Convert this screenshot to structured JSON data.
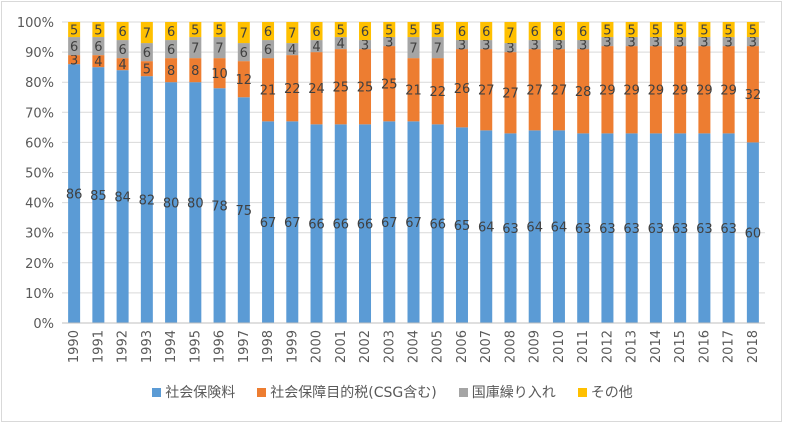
{
  "chart_data": {
    "type": "bar",
    "stacked": "percent",
    "categories": [
      "1990",
      "1991",
      "1992",
      "1993",
      "1994",
      "1995",
      "1996",
      "1997",
      "1998",
      "1999",
      "2000",
      "2001",
      "2002",
      "2003",
      "2004",
      "2005",
      "2006",
      "2007",
      "2008",
      "2009",
      "2010",
      "2011",
      "2012",
      "2013",
      "2014",
      "2015",
      "2016",
      "2017",
      "2018"
    ],
    "series": [
      {
        "name": "社会保険料",
        "color": "#5b9bd5",
        "values": [
          86,
          85,
          84,
          82,
          80,
          80,
          78,
          75,
          67,
          67,
          66,
          66,
          66,
          67,
          67,
          66,
          65,
          64,
          63,
          64,
          64,
          63,
          63,
          63,
          63,
          63,
          63,
          63,
          60
        ]
      },
      {
        "name": "社会保障目的税(CSG含む)",
        "color": "#ed7d31",
        "values": [
          3,
          4,
          4,
          5,
          8,
          8,
          10,
          12,
          21,
          22,
          24,
          25,
          25,
          25,
          21,
          22,
          26,
          27,
          27,
          27,
          27,
          28,
          29,
          29,
          29,
          29,
          29,
          29,
          32
        ]
      },
      {
        "name": "国庫繰り入れ",
        "color": "#a5a5a5",
        "values": [
          6,
          6,
          6,
          6,
          6,
          7,
          7,
          6,
          6,
          4,
          4,
          4,
          3,
          3,
          7,
          7,
          3,
          3,
          3,
          3,
          3,
          3,
          3,
          3,
          3,
          3,
          3,
          3,
          3
        ]
      },
      {
        "name": "その他",
        "color": "#ffc000",
        "values": [
          5,
          5,
          6,
          7,
          6,
          5,
          5,
          7,
          6,
          7,
          6,
          5,
          6,
          5,
          5,
          5,
          6,
          6,
          7,
          6,
          6,
          6,
          5,
          5,
          5,
          5,
          5,
          5,
          5
        ]
      }
    ],
    "yticks": [
      "0%",
      "10%",
      "20%",
      "30%",
      "40%",
      "50%",
      "60%",
      "70%",
      "80%",
      "90%",
      "100%"
    ],
    "ylim": [
      0,
      100
    ],
    "grid": true,
    "legend": "bottom",
    "title": "",
    "xlabel": "",
    "ylabel": ""
  }
}
